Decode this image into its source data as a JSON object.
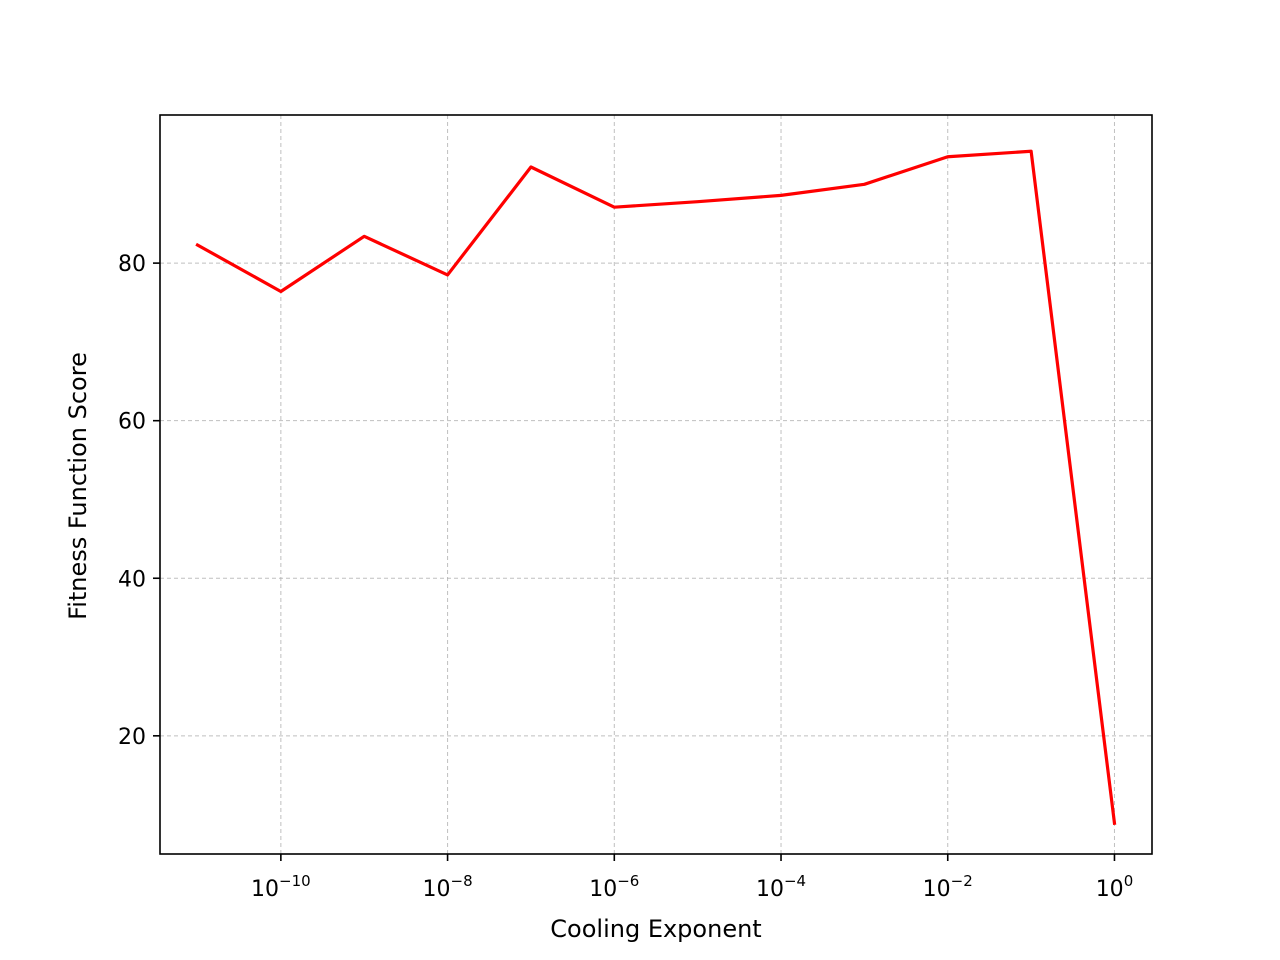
{
  "chart_data": {
    "type": "line",
    "title": "",
    "xlabel": "Cooling Exponent",
    "ylabel": "Fitness Function Score",
    "xscale": "log",
    "xlim": [
      3.55e-12,
      2.82
    ],
    "ylim": [
      5.0,
      98.8
    ],
    "grid": true,
    "x_ticks": [
      {
        "value": 1e-10,
        "base": "10",
        "exp": "−10"
      },
      {
        "value": 1e-08,
        "base": "10",
        "exp": "−8"
      },
      {
        "value": 1e-06,
        "base": "10",
        "exp": "−6"
      },
      {
        "value": 0.0001,
        "base": "10",
        "exp": "−4"
      },
      {
        "value": 0.01,
        "base": "10",
        "exp": "−2"
      },
      {
        "value": 1,
        "base": "10",
        "exp": "0"
      }
    ],
    "y_ticks": [
      20,
      40,
      60,
      80
    ],
    "series": [
      {
        "color": "#ff0000",
        "x": [
          1e-11,
          1e-10,
          1e-09,
          1e-08,
          1e-07,
          1e-06,
          1e-05,
          0.0001,
          0.001,
          0.01,
          0.1,
          1
        ],
        "y": [
          82.3,
          76.4,
          83.4,
          78.5,
          92.2,
          87.1,
          87.8,
          88.6,
          90.0,
          93.5,
          94.2,
          8.9
        ]
      }
    ]
  }
}
